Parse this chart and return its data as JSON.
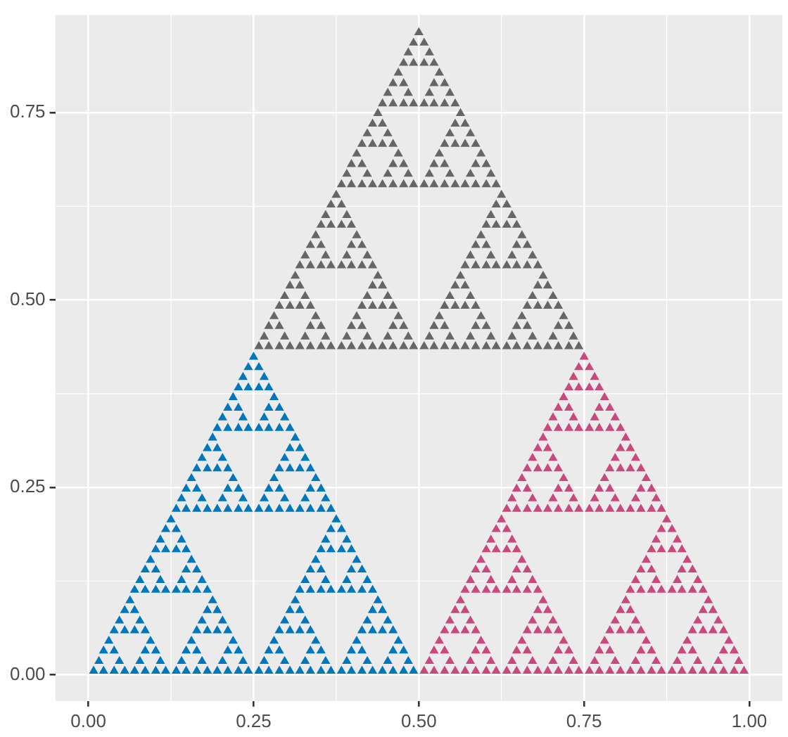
{
  "chart_data": {
    "type": "scatter",
    "marker": "triangle",
    "grid": true,
    "legend": false,
    "xlim": [
      -0.05,
      1.05
    ],
    "ylim": [
      -0.035,
      0.88
    ],
    "xticks": [
      {
        "value": 0,
        "label": "0.00"
      },
      {
        "value": 0.25,
        "label": "0.25"
      },
      {
        "value": 0.5,
        "label": "0.50"
      },
      {
        "value": 0.75,
        "label": "0.75"
      },
      {
        "value": 1,
        "label": "1.00"
      }
    ],
    "yticks": [
      {
        "value": 0,
        "label": "0.00"
      },
      {
        "value": 0.25,
        "label": "0.25"
      },
      {
        "value": 0.5,
        "label": "0.50"
      },
      {
        "value": 0.75,
        "label": "0.75"
      }
    ],
    "series": [
      {
        "color": "#0077bb",
        "x": [
          0.008,
          0.023,
          0.016,
          0.039,
          0.055,
          0.047,
          0.023,
          0.039,
          0.031,
          0.07,
          0.086,
          0.078,
          0.102,
          0.117,
          0.109,
          0.086,
          0.102,
          0.094,
          0.039,
          0.055,
          0.047,
          0.07,
          0.086,
          0.078,
          0.055,
          0.07,
          0.063,
          0.133,
          0.148,
          0.141,
          0.164,
          0.18,
          0.172,
          0.148,
          0.164,
          0.156,
          0.195,
          0.211,
          0.203,
          0.227,
          0.242,
          0.234,
          0.211,
          0.227,
          0.219,
          0.164,
          0.18,
          0.172,
          0.195,
          0.211,
          0.203,
          0.18,
          0.195,
          0.188,
          0.07,
          0.086,
          0.078,
          0.102,
          0.117,
          0.109,
          0.086,
          0.102,
          0.094,
          0.133,
          0.148,
          0.141,
          0.164,
          0.18,
          0.172,
          0.148,
          0.164,
          0.156,
          0.102,
          0.117,
          0.109,
          0.133,
          0.148,
          0.141,
          0.117,
          0.133,
          0.125,
          0.258,
          0.273,
          0.266,
          0.289,
          0.305,
          0.297,
          0.273,
          0.289,
          0.281,
          0.32,
          0.336,
          0.328,
          0.352,
          0.367,
          0.359,
          0.336,
          0.352,
          0.344,
          0.289,
          0.305,
          0.297,
          0.32,
          0.336,
          0.328,
          0.305,
          0.32,
          0.313,
          0.383,
          0.398,
          0.391,
          0.414,
          0.43,
          0.422,
          0.398,
          0.414,
          0.406,
          0.445,
          0.461,
          0.453,
          0.477,
          0.492,
          0.484,
          0.461,
          0.477,
          0.469,
          0.414,
          0.43,
          0.422,
          0.445,
          0.461,
          0.453,
          0.43,
          0.445,
          0.438,
          0.32,
          0.336,
          0.328,
          0.352,
          0.367,
          0.359,
          0.336,
          0.352,
          0.344,
          0.383,
          0.398,
          0.391,
          0.414,
          0.43,
          0.422,
          0.398,
          0.414,
          0.406,
          0.352,
          0.367,
          0.359,
          0.383,
          0.398,
          0.391,
          0.367,
          0.383,
          0.375,
          0.133,
          0.148,
          0.141,
          0.164,
          0.18,
          0.172,
          0.148,
          0.164,
          0.156,
          0.195,
          0.211,
          0.203,
          0.227,
          0.242,
          0.234,
          0.211,
          0.227,
          0.219,
          0.164,
          0.18,
          0.172,
          0.195,
          0.211,
          0.203,
          0.18,
          0.195,
          0.188,
          0.258,
          0.273,
          0.266,
          0.289,
          0.305,
          0.297,
          0.273,
          0.289,
          0.281,
          0.32,
          0.336,
          0.328,
          0.352,
          0.367,
          0.359,
          0.336,
          0.352,
          0.344,
          0.289,
          0.305,
          0.297,
          0.32,
          0.336,
          0.328,
          0.305,
          0.32,
          0.313,
          0.195,
          0.211,
          0.203,
          0.227,
          0.242,
          0.234,
          0.211,
          0.227,
          0.219,
          0.258,
          0.273,
          0.266,
          0.289,
          0.305,
          0.297,
          0.273,
          0.289,
          0.281,
          0.227,
          0.242,
          0.234,
          0.258,
          0.273,
          0.266,
          0.242,
          0.258,
          0.25
        ],
        "values": [
          0.005,
          0.005,
          0.018,
          0.005,
          0.005,
          0.018,
          0.032,
          0.032,
          0.045,
          0.005,
          0.005,
          0.018,
          0.005,
          0.005,
          0.018,
          0.032,
          0.032,
          0.045,
          0.059,
          0.059,
          0.072,
          0.059,
          0.059,
          0.072,
          0.086,
          0.086,
          0.099,
          0.005,
          0.005,
          0.018,
          0.005,
          0.005,
          0.018,
          0.032,
          0.032,
          0.045,
          0.005,
          0.005,
          0.018,
          0.005,
          0.005,
          0.018,
          0.032,
          0.032,
          0.045,
          0.059,
          0.059,
          0.072,
          0.059,
          0.059,
          0.072,
          0.086,
          0.086,
          0.099,
          0.113,
          0.113,
          0.126,
          0.113,
          0.113,
          0.126,
          0.14,
          0.14,
          0.153,
          0.113,
          0.113,
          0.126,
          0.113,
          0.113,
          0.126,
          0.14,
          0.14,
          0.153,
          0.167,
          0.167,
          0.18,
          0.167,
          0.167,
          0.18,
          0.194,
          0.194,
          0.207,
          0.005,
          0.005,
          0.018,
          0.005,
          0.005,
          0.018,
          0.032,
          0.032,
          0.045,
          0.005,
          0.005,
          0.018,
          0.005,
          0.005,
          0.018,
          0.032,
          0.032,
          0.045,
          0.059,
          0.059,
          0.072,
          0.059,
          0.059,
          0.072,
          0.086,
          0.086,
          0.099,
          0.005,
          0.005,
          0.018,
          0.005,
          0.005,
          0.018,
          0.032,
          0.032,
          0.045,
          0.005,
          0.005,
          0.018,
          0.005,
          0.005,
          0.018,
          0.032,
          0.032,
          0.045,
          0.059,
          0.059,
          0.072,
          0.059,
          0.059,
          0.072,
          0.086,
          0.086,
          0.099,
          0.113,
          0.113,
          0.126,
          0.113,
          0.113,
          0.126,
          0.14,
          0.14,
          0.153,
          0.113,
          0.113,
          0.126,
          0.113,
          0.113,
          0.126,
          0.14,
          0.14,
          0.153,
          0.167,
          0.167,
          0.18,
          0.167,
          0.167,
          0.18,
          0.194,
          0.194,
          0.207,
          0.221,
          0.221,
          0.235,
          0.221,
          0.221,
          0.235,
          0.248,
          0.248,
          0.262,
          0.221,
          0.221,
          0.235,
          0.221,
          0.221,
          0.235,
          0.248,
          0.248,
          0.262,
          0.275,
          0.275,
          0.289,
          0.275,
          0.275,
          0.289,
          0.302,
          0.302,
          0.316,
          0.221,
          0.221,
          0.235,
          0.221,
          0.221,
          0.235,
          0.248,
          0.248,
          0.262,
          0.221,
          0.221,
          0.235,
          0.221,
          0.221,
          0.235,
          0.248,
          0.248,
          0.262,
          0.275,
          0.275,
          0.289,
          0.275,
          0.275,
          0.289,
          0.302,
          0.302,
          0.316,
          0.329,
          0.329,
          0.343,
          0.329,
          0.329,
          0.343,
          0.356,
          0.356,
          0.37,
          0.329,
          0.329,
          0.343,
          0.329,
          0.329,
          0.343,
          0.356,
          0.356,
          0.37,
          0.383,
          0.383,
          0.397,
          0.383,
          0.383,
          0.397,
          0.41,
          0.41,
          0.424
        ]
      },
      {
        "color": "#c8497d",
        "x": [
          0.508,
          0.523,
          0.516,
          0.539,
          0.555,
          0.547,
          0.523,
          0.539,
          0.531,
          0.57,
          0.586,
          0.578,
          0.602,
          0.617,
          0.609,
          0.586,
          0.602,
          0.594,
          0.539,
          0.555,
          0.547,
          0.57,
          0.586,
          0.578,
          0.555,
          0.57,
          0.563,
          0.633,
          0.648,
          0.641,
          0.664,
          0.68,
          0.672,
          0.648,
          0.664,
          0.656,
          0.695,
          0.711,
          0.703,
          0.727,
          0.742,
          0.734,
          0.711,
          0.727,
          0.719,
          0.664,
          0.68,
          0.672,
          0.695,
          0.711,
          0.703,
          0.68,
          0.695,
          0.688,
          0.57,
          0.586,
          0.578,
          0.602,
          0.617,
          0.609,
          0.586,
          0.602,
          0.594,
          0.633,
          0.648,
          0.641,
          0.664,
          0.68,
          0.672,
          0.648,
          0.664,
          0.656,
          0.602,
          0.617,
          0.609,
          0.633,
          0.648,
          0.641,
          0.617,
          0.633,
          0.625,
          0.758,
          0.773,
          0.766,
          0.789,
          0.805,
          0.797,
          0.773,
          0.789,
          0.781,
          0.82,
          0.836,
          0.828,
          0.852,
          0.867,
          0.859,
          0.836,
          0.852,
          0.844,
          0.789,
          0.805,
          0.797,
          0.82,
          0.836,
          0.828,
          0.805,
          0.82,
          0.813,
          0.883,
          0.898,
          0.891,
          0.914,
          0.93,
          0.922,
          0.898,
          0.914,
          0.906,
          0.945,
          0.961,
          0.953,
          0.977,
          0.992,
          0.984,
          0.961,
          0.977,
          0.969,
          0.914,
          0.93,
          0.922,
          0.945,
          0.961,
          0.953,
          0.93,
          0.945,
          0.938,
          0.82,
          0.836,
          0.828,
          0.852,
          0.867,
          0.859,
          0.836,
          0.852,
          0.844,
          0.883,
          0.898,
          0.891,
          0.914,
          0.93,
          0.922,
          0.898,
          0.914,
          0.906,
          0.852,
          0.867,
          0.859,
          0.883,
          0.898,
          0.891,
          0.867,
          0.883,
          0.875,
          0.633,
          0.648,
          0.641,
          0.664,
          0.68,
          0.672,
          0.648,
          0.664,
          0.656,
          0.695,
          0.711,
          0.703,
          0.727,
          0.742,
          0.734,
          0.711,
          0.727,
          0.719,
          0.664,
          0.68,
          0.672,
          0.695,
          0.711,
          0.703,
          0.68,
          0.695,
          0.688,
          0.758,
          0.773,
          0.766,
          0.789,
          0.805,
          0.797,
          0.773,
          0.789,
          0.781,
          0.82,
          0.836,
          0.828,
          0.852,
          0.867,
          0.859,
          0.836,
          0.852,
          0.844,
          0.789,
          0.805,
          0.797,
          0.82,
          0.836,
          0.828,
          0.805,
          0.82,
          0.813,
          0.695,
          0.711,
          0.703,
          0.727,
          0.742,
          0.734,
          0.711,
          0.727,
          0.719,
          0.758,
          0.773,
          0.766,
          0.789,
          0.805,
          0.797,
          0.773,
          0.789,
          0.781,
          0.727,
          0.742,
          0.734,
          0.758,
          0.773,
          0.766,
          0.742,
          0.758,
          0.75
        ],
        "values": [
          0.005,
          0.005,
          0.018,
          0.005,
          0.005,
          0.018,
          0.032,
          0.032,
          0.045,
          0.005,
          0.005,
          0.018,
          0.005,
          0.005,
          0.018,
          0.032,
          0.032,
          0.045,
          0.059,
          0.059,
          0.072,
          0.059,
          0.059,
          0.072,
          0.086,
          0.086,
          0.099,
          0.005,
          0.005,
          0.018,
          0.005,
          0.005,
          0.018,
          0.032,
          0.032,
          0.045,
          0.005,
          0.005,
          0.018,
          0.005,
          0.005,
          0.018,
          0.032,
          0.032,
          0.045,
          0.059,
          0.059,
          0.072,
          0.059,
          0.059,
          0.072,
          0.086,
          0.086,
          0.099,
          0.113,
          0.113,
          0.126,
          0.113,
          0.113,
          0.126,
          0.14,
          0.14,
          0.153,
          0.113,
          0.113,
          0.126,
          0.113,
          0.113,
          0.126,
          0.14,
          0.14,
          0.153,
          0.167,
          0.167,
          0.18,
          0.167,
          0.167,
          0.18,
          0.194,
          0.194,
          0.207,
          0.005,
          0.005,
          0.018,
          0.005,
          0.005,
          0.018,
          0.032,
          0.032,
          0.045,
          0.005,
          0.005,
          0.018,
          0.005,
          0.005,
          0.018,
          0.032,
          0.032,
          0.045,
          0.059,
          0.059,
          0.072,
          0.059,
          0.059,
          0.072,
          0.086,
          0.086,
          0.099,
          0.005,
          0.005,
          0.018,
          0.005,
          0.005,
          0.018,
          0.032,
          0.032,
          0.045,
          0.005,
          0.005,
          0.018,
          0.005,
          0.005,
          0.018,
          0.032,
          0.032,
          0.045,
          0.059,
          0.059,
          0.072,
          0.059,
          0.059,
          0.072,
          0.086,
          0.086,
          0.099,
          0.113,
          0.113,
          0.126,
          0.113,
          0.113,
          0.126,
          0.14,
          0.14,
          0.153,
          0.113,
          0.113,
          0.126,
          0.113,
          0.113,
          0.126,
          0.14,
          0.14,
          0.153,
          0.167,
          0.167,
          0.18,
          0.167,
          0.167,
          0.18,
          0.194,
          0.194,
          0.207,
          0.221,
          0.221,
          0.235,
          0.221,
          0.221,
          0.235,
          0.248,
          0.248,
          0.262,
          0.221,
          0.221,
          0.235,
          0.221,
          0.221,
          0.235,
          0.248,
          0.248,
          0.262,
          0.275,
          0.275,
          0.289,
          0.275,
          0.275,
          0.289,
          0.302,
          0.302,
          0.316,
          0.221,
          0.221,
          0.235,
          0.221,
          0.221,
          0.235,
          0.248,
          0.248,
          0.262,
          0.221,
          0.221,
          0.235,
          0.221,
          0.221,
          0.235,
          0.248,
          0.248,
          0.262,
          0.275,
          0.275,
          0.289,
          0.275,
          0.275,
          0.289,
          0.302,
          0.302,
          0.316,
          0.329,
          0.329,
          0.343,
          0.329,
          0.329,
          0.343,
          0.356,
          0.356,
          0.37,
          0.329,
          0.329,
          0.343,
          0.329,
          0.329,
          0.343,
          0.356,
          0.356,
          0.37,
          0.383,
          0.383,
          0.397,
          0.383,
          0.383,
          0.397,
          0.41,
          0.41,
          0.424
        ]
      },
      {
        "color": "#666666",
        "x": [
          0.258,
          0.273,
          0.266,
          0.289,
          0.305,
          0.297,
          0.273,
          0.289,
          0.281,
          0.32,
          0.336,
          0.328,
          0.352,
          0.367,
          0.359,
          0.336,
          0.352,
          0.344,
          0.289,
          0.305,
          0.297,
          0.32,
          0.336,
          0.328,
          0.305,
          0.32,
          0.313,
          0.383,
          0.398,
          0.391,
          0.414,
          0.43,
          0.422,
          0.398,
          0.414,
          0.406,
          0.445,
          0.461,
          0.453,
          0.477,
          0.492,
          0.484,
          0.461,
          0.477,
          0.469,
          0.414,
          0.43,
          0.422,
          0.445,
          0.461,
          0.453,
          0.43,
          0.445,
          0.438,
          0.32,
          0.336,
          0.328,
          0.352,
          0.367,
          0.359,
          0.336,
          0.352,
          0.344,
          0.383,
          0.398,
          0.391,
          0.414,
          0.43,
          0.422,
          0.398,
          0.414,
          0.406,
          0.352,
          0.367,
          0.359,
          0.383,
          0.398,
          0.391,
          0.367,
          0.383,
          0.375,
          0.508,
          0.523,
          0.516,
          0.539,
          0.555,
          0.547,
          0.523,
          0.539,
          0.531,
          0.57,
          0.586,
          0.578,
          0.602,
          0.617,
          0.609,
          0.586,
          0.602,
          0.594,
          0.539,
          0.555,
          0.547,
          0.57,
          0.586,
          0.578,
          0.555,
          0.57,
          0.563,
          0.633,
          0.648,
          0.641,
          0.664,
          0.68,
          0.672,
          0.648,
          0.664,
          0.656,
          0.695,
          0.711,
          0.703,
          0.727,
          0.742,
          0.734,
          0.711,
          0.727,
          0.719,
          0.664,
          0.68,
          0.672,
          0.695,
          0.711,
          0.703,
          0.68,
          0.695,
          0.688,
          0.57,
          0.586,
          0.578,
          0.602,
          0.617,
          0.609,
          0.586,
          0.602,
          0.594,
          0.633,
          0.648,
          0.641,
          0.664,
          0.68,
          0.672,
          0.648,
          0.664,
          0.656,
          0.602,
          0.617,
          0.609,
          0.633,
          0.648,
          0.641,
          0.617,
          0.633,
          0.625,
          0.383,
          0.398,
          0.391,
          0.414,
          0.43,
          0.422,
          0.398,
          0.414,
          0.406,
          0.445,
          0.461,
          0.453,
          0.477,
          0.492,
          0.484,
          0.461,
          0.477,
          0.469,
          0.414,
          0.43,
          0.422,
          0.445,
          0.461,
          0.453,
          0.43,
          0.445,
          0.438,
          0.508,
          0.523,
          0.516,
          0.539,
          0.555,
          0.547,
          0.523,
          0.539,
          0.531,
          0.57,
          0.586,
          0.578,
          0.602,
          0.617,
          0.609,
          0.586,
          0.602,
          0.594,
          0.539,
          0.555,
          0.547,
          0.57,
          0.586,
          0.578,
          0.555,
          0.57,
          0.563,
          0.445,
          0.461,
          0.453,
          0.477,
          0.492,
          0.484,
          0.461,
          0.477,
          0.469,
          0.508,
          0.523,
          0.516,
          0.539,
          0.555,
          0.547,
          0.523,
          0.539,
          0.531,
          0.477,
          0.492,
          0.484,
          0.508,
          0.523,
          0.516,
          0.492,
          0.508,
          0.5
        ],
        "values": [
          0.438,
          0.438,
          0.451,
          0.438,
          0.438,
          0.451,
          0.465,
          0.465,
          0.478,
          0.438,
          0.438,
          0.451,
          0.438,
          0.438,
          0.451,
          0.465,
          0.465,
          0.478,
          0.492,
          0.492,
          0.505,
          0.492,
          0.492,
          0.505,
          0.519,
          0.519,
          0.532,
          0.438,
          0.438,
          0.451,
          0.438,
          0.438,
          0.451,
          0.465,
          0.465,
          0.478,
          0.438,
          0.438,
          0.451,
          0.438,
          0.438,
          0.451,
          0.465,
          0.465,
          0.478,
          0.492,
          0.492,
          0.505,
          0.492,
          0.492,
          0.505,
          0.519,
          0.519,
          0.532,
          0.546,
          0.546,
          0.559,
          0.546,
          0.546,
          0.559,
          0.573,
          0.573,
          0.586,
          0.546,
          0.546,
          0.559,
          0.546,
          0.546,
          0.559,
          0.573,
          0.573,
          0.586,
          0.6,
          0.6,
          0.613,
          0.6,
          0.6,
          0.613,
          0.627,
          0.627,
          0.64,
          0.438,
          0.438,
          0.451,
          0.438,
          0.438,
          0.451,
          0.465,
          0.465,
          0.478,
          0.438,
          0.438,
          0.451,
          0.438,
          0.438,
          0.451,
          0.465,
          0.465,
          0.478,
          0.492,
          0.492,
          0.505,
          0.492,
          0.492,
          0.505,
          0.519,
          0.519,
          0.532,
          0.438,
          0.438,
          0.451,
          0.438,
          0.438,
          0.451,
          0.465,
          0.465,
          0.478,
          0.438,
          0.438,
          0.451,
          0.438,
          0.438,
          0.451,
          0.465,
          0.465,
          0.478,
          0.492,
          0.492,
          0.505,
          0.492,
          0.492,
          0.505,
          0.519,
          0.519,
          0.532,
          0.546,
          0.546,
          0.559,
          0.546,
          0.546,
          0.559,
          0.573,
          0.573,
          0.586,
          0.546,
          0.546,
          0.559,
          0.546,
          0.546,
          0.559,
          0.573,
          0.573,
          0.586,
          0.6,
          0.6,
          0.613,
          0.6,
          0.6,
          0.613,
          0.627,
          0.627,
          0.64,
          0.654,
          0.654,
          0.668,
          0.654,
          0.654,
          0.668,
          0.681,
          0.681,
          0.695,
          0.654,
          0.654,
          0.668,
          0.654,
          0.654,
          0.668,
          0.681,
          0.681,
          0.695,
          0.708,
          0.708,
          0.722,
          0.708,
          0.708,
          0.722,
          0.735,
          0.735,
          0.749,
          0.654,
          0.654,
          0.668,
          0.654,
          0.654,
          0.668,
          0.681,
          0.681,
          0.695,
          0.654,
          0.654,
          0.668,
          0.654,
          0.654,
          0.668,
          0.681,
          0.681,
          0.695,
          0.708,
          0.708,
          0.722,
          0.708,
          0.708,
          0.722,
          0.735,
          0.735,
          0.749,
          0.762,
          0.762,
          0.776,
          0.762,
          0.762,
          0.776,
          0.789,
          0.789,
          0.803,
          0.762,
          0.762,
          0.776,
          0.762,
          0.762,
          0.776,
          0.789,
          0.789,
          0.803,
          0.816,
          0.816,
          0.83,
          0.816,
          0.816,
          0.83,
          0.843,
          0.843,
          0.857
        ]
      }
    ]
  }
}
